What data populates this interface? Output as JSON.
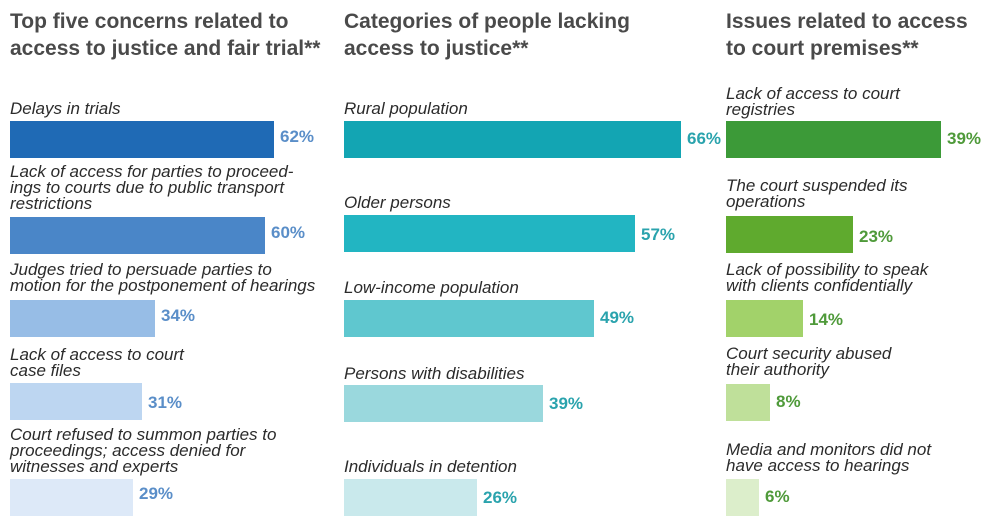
{
  "chart_data": [
    {
      "type": "bar",
      "orientation": "horizontal",
      "title": "Top five concerns related to access to justice and fair trial**",
      "categories": [
        "Delays in trials",
        "Lack of access for parties to proceed-ings to courts due to public transport restrictions",
        "Judges tried to persuade parties to motion for the postponement of hearings",
        "Lack of access to court case files",
        "Court refused to summon parties to proceedings; access denied for witnesses and experts"
      ],
      "values": [
        62,
        60,
        34,
        31,
        29
      ],
      "value_labels": [
        "62%",
        "60%",
        "34%",
        "31%",
        "29%"
      ],
      "unit": "%",
      "colors": [
        "#1f6ab5",
        "#4a86c8",
        "#97bde6",
        "#bdd6f1",
        "#dde9f8"
      ],
      "value_color": "#5a8ec8"
    },
    {
      "type": "bar",
      "orientation": "horizontal",
      "title": "Categories of people lacking access to justice**",
      "categories": [
        "Rural population",
        "Older persons",
        "Low-income population",
        "Persons with disabilities",
        "Individuals in detention"
      ],
      "values": [
        66,
        57,
        49,
        39,
        26
      ],
      "value_labels": [
        "66%",
        "57%",
        "49%",
        "39%",
        "26%"
      ],
      "unit": "%",
      "colors": [
        "#13a5b3",
        "#22b5c2",
        "#5fc7cf",
        "#9ad8dd",
        "#c9e9ec"
      ],
      "value_color": "#2aa3ad"
    },
    {
      "type": "bar",
      "orientation": "horizontal",
      "title": "Issues related to access to court premises**",
      "categories": [
        "Lack of access to court registries",
        "The court suspended its operations",
        "Lack of possibility to speak with clients confidentially",
        "Court security abused their authority",
        "Media and monitors did not have access to hearings"
      ],
      "values": [
        39,
        23,
        14,
        8,
        6
      ],
      "value_labels": [
        "39%",
        "23%",
        "14%",
        "8%",
        "6%"
      ],
      "unit": "%",
      "colors": [
        "#3c9a38",
        "#5faa2e",
        "#a2d26a",
        "#bfe09a",
        "#dceecb"
      ],
      "value_color": "#4f9a3a"
    }
  ]
}
